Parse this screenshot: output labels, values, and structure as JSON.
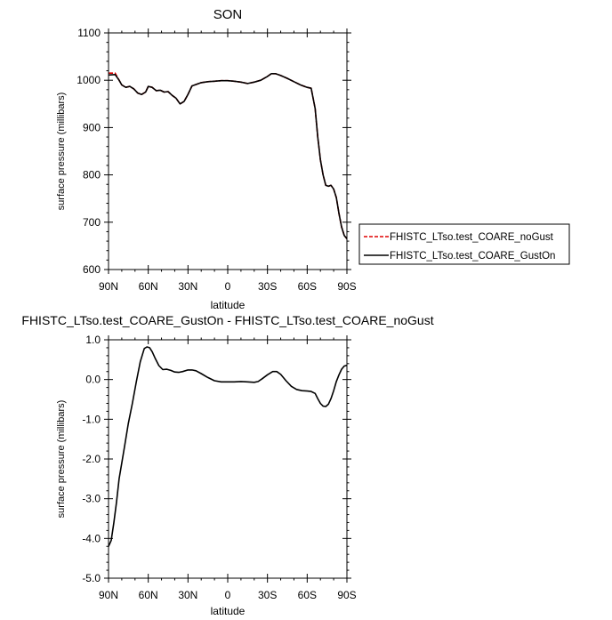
{
  "chart_data": [
    {
      "type": "line",
      "title": "SON",
      "xlabel": "latitude",
      "ylabel": "surface pressure (millibars)",
      "xlim": [
        90,
        -90
      ],
      "ylim": [
        600,
        1100
      ],
      "x_ticks": [
        90,
        60,
        30,
        0,
        -30,
        -60,
        -90
      ],
      "x_tick_labels": [
        "90N",
        "60N",
        "30N",
        "0",
        "30S",
        "60S",
        "90S"
      ],
      "y_ticks": [
        600,
        700,
        800,
        900,
        1000,
        1100
      ],
      "y_tick_labels": [
        "600",
        "700",
        "800",
        "900",
        "1000",
        "1100"
      ],
      "legend_position": "right",
      "x": [
        90,
        85,
        82,
        80,
        77,
        74,
        71,
        68,
        65,
        62,
        60,
        57,
        54,
        51,
        48,
        45,
        42,
        39,
        36,
        33,
        30,
        27,
        24,
        20,
        15,
        10,
        5,
        0,
        -5,
        -10,
        -15,
        -20,
        -25,
        -30,
        -33,
        -36,
        -40,
        -45,
        -50,
        -55,
        -60,
        -63,
        -66,
        -68,
        -70,
        -72,
        -74,
        -76,
        -78,
        -80,
        -82,
        -84,
        -86,
        -88,
        -90
      ],
      "series": [
        {
          "name": "FHISTC_LTso.test_COARE_noGust",
          "color": "#e00000",
          "dash": "dashed",
          "values": [
            1015,
            1015,
            1000,
            990,
            985,
            987,
            982,
            973,
            970,
            975,
            987,
            985,
            978,
            979,
            975,
            976,
            968,
            962,
            950,
            955,
            970,
            988,
            991,
            995,
            997,
            998,
            999,
            999,
            998,
            996,
            993,
            996,
            1000,
            1008,
            1014,
            1014,
            1010,
            1004,
            997,
            990,
            985,
            983,
            940,
            880,
            832,
            800,
            778,
            776,
            778,
            770,
            752,
            718,
            690,
            672,
            665
          ]
        },
        {
          "name": "FHISTC_LTso.test_COARE_GustOn",
          "color": "#000000",
          "dash": "solid",
          "values": [
            1011,
            1012,
            1000,
            990,
            985,
            987,
            982,
            973,
            970,
            975,
            987,
            985,
            978,
            979,
            975,
            976,
            968,
            962,
            950,
            955,
            970,
            988,
            991,
            995,
            997,
            998,
            999,
            999,
            998,
            996,
            993,
            996,
            1000,
            1008,
            1014,
            1014,
            1010,
            1004,
            997,
            990,
            985,
            983,
            940,
            880,
            832,
            800,
            778,
            776,
            778,
            770,
            752,
            718,
            690,
            672,
            665
          ]
        }
      ]
    },
    {
      "type": "line",
      "title": "FHISTC_LTso.test_COARE_GustOn - FHISTC_LTso.test_COARE_noGust",
      "xlabel": "latitude",
      "ylabel": "surface pressure (millibars)",
      "xlim": [
        90,
        -90
      ],
      "ylim": [
        -5,
        1
      ],
      "x_ticks": [
        90,
        60,
        30,
        0,
        -30,
        -60,
        -90
      ],
      "x_tick_labels": [
        "90N",
        "60N",
        "30N",
        "0",
        "30S",
        "60S",
        "90S"
      ],
      "y_ticks": [
        -5,
        -4,
        -3,
        -2,
        -1,
        0,
        1
      ],
      "y_tick_labels": [
        "-5.0",
        "-4.0",
        "-3.0",
        "-2.0",
        "-1.0",
        "0.0",
        "1.0"
      ],
      "x": [
        90,
        88,
        86,
        84,
        82,
        80,
        78,
        75,
        72,
        69,
        66,
        63,
        61,
        59,
        57,
        55,
        52,
        49,
        46,
        43,
        40,
        37,
        34,
        30,
        27,
        24,
        20,
        15,
        10,
        5,
        0,
        -5,
        -10,
        -15,
        -20,
        -23,
        -26,
        -30,
        -34,
        -37,
        -40,
        -44,
        -48,
        -52,
        -56,
        -60,
        -63,
        -66,
        -68,
        -70,
        -72,
        -74,
        -76,
        -78,
        -80,
        -82,
        -84,
        -86,
        -88,
        -90
      ],
      "series": [
        {
          "name": "",
          "color": "#000000",
          "dash": "solid",
          "values": [
            -4.2,
            -4.05,
            -3.6,
            -3.1,
            -2.5,
            -2.1,
            -1.7,
            -1.1,
            -0.6,
            -0.05,
            0.45,
            0.78,
            0.82,
            0.8,
            0.7,
            0.55,
            0.35,
            0.25,
            0.26,
            0.23,
            0.19,
            0.18,
            0.2,
            0.24,
            0.24,
            0.22,
            0.15,
            0.05,
            -0.03,
            -0.06,
            -0.06,
            -0.06,
            -0.05,
            -0.06,
            -0.07,
            -0.05,
            0.02,
            0.12,
            0.2,
            0.2,
            0.13,
            -0.03,
            -0.17,
            -0.25,
            -0.28,
            -0.29,
            -0.3,
            -0.35,
            -0.48,
            -0.6,
            -0.67,
            -0.68,
            -0.62,
            -0.48,
            -0.28,
            -0.05,
            0.12,
            0.26,
            0.34,
            0.36
          ]
        }
      ]
    }
  ]
}
